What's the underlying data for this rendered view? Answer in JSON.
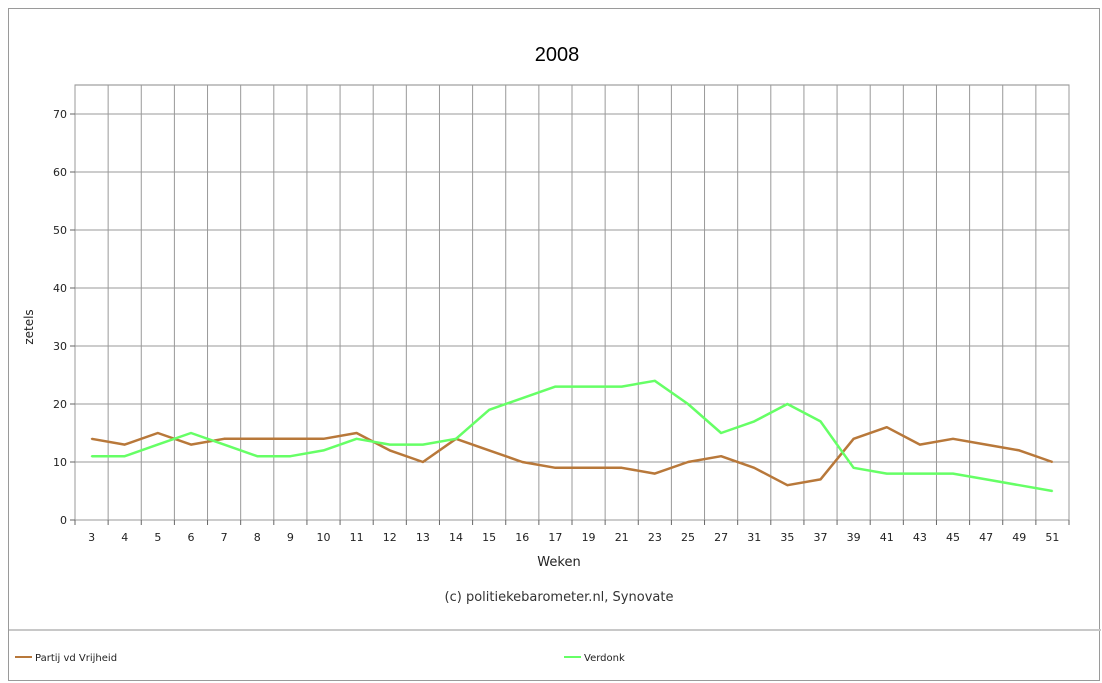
{
  "chart_data": {
    "type": "line",
    "title": "2008",
    "xlabel": "Weken",
    "ylabel": "zetels",
    "credit": "(c) politiekebarometer.nl, Synovate",
    "categories": [
      "3",
      "4",
      "5",
      "6",
      "7",
      "8",
      "9",
      "10",
      "11",
      "12",
      "13",
      "14",
      "15",
      "16",
      "17",
      "19",
      "21",
      "23",
      "25",
      "27",
      "31",
      "35",
      "37",
      "39",
      "41",
      "43",
      "45",
      "47",
      "49",
      "51"
    ],
    "yticks": [
      0,
      10,
      20,
      30,
      40,
      50,
      60,
      70
    ],
    "ylim": [
      0,
      75
    ],
    "grid": true,
    "legend_position": "bottom",
    "series": [
      {
        "name": "Partij vd Vrijheid",
        "color": "#b8783a",
        "values": [
          14,
          13,
          15,
          13,
          14,
          14,
          14,
          14,
          15,
          12,
          10,
          14,
          12,
          10,
          9,
          9,
          9,
          8,
          10,
          11,
          9,
          6,
          7,
          14,
          16,
          13,
          14,
          13,
          12,
          10
        ]
      },
      {
        "name": "Verdonk",
        "color": "#66ff66",
        "values": [
          11,
          11,
          13,
          15,
          13,
          11,
          11,
          12,
          14,
          13,
          13,
          14,
          19,
          21,
          23,
          23,
          23,
          24,
          20,
          15,
          17,
          20,
          17,
          9,
          8,
          8,
          8,
          7,
          6,
          5
        ]
      }
    ]
  }
}
